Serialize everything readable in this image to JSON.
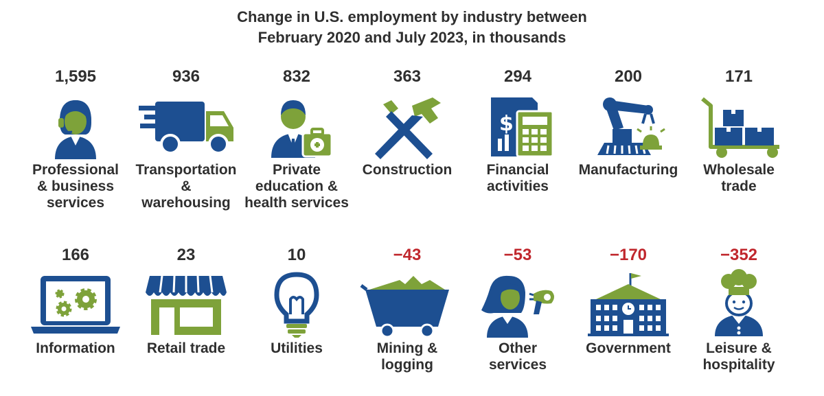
{
  "title_lines": [
    "Change in U.S. employment by industry between",
    "February 2020 and July 2023, in thousands"
  ],
  "colors": {
    "navy": "#1d4f91",
    "green": "#7ea23a",
    "negative": "#c0272d",
    "text": "#2f2f2f"
  },
  "chart_data": {
    "type": "table",
    "title": "Change in U.S. employment by industry between February 2020 and July 2023, in thousands",
    "unit": "thousands",
    "categories": [
      "Professional & business services",
      "Transportation & warehousing",
      "Private education & health services",
      "Construction",
      "Financial activities",
      "Manufacturing",
      "Wholesale trade",
      "Information",
      "Retail trade",
      "Utilities",
      "Mining & logging",
      "Other services",
      "Government",
      "Leisure & hospitality"
    ],
    "values": [
      1595,
      936,
      832,
      363,
      294,
      200,
      171,
      166,
      23,
      10,
      -43,
      -53,
      -170,
      -352
    ],
    "items": [
      {
        "value_text": "1,595",
        "label_lines": [
          "Professional",
          "& business",
          "services"
        ],
        "icon": "call-center-agent-icon",
        "sign": "pos"
      },
      {
        "value_text": "936",
        "label_lines": [
          "Transportation",
          "&",
          "warehousing"
        ],
        "icon": "delivery-truck-icon",
        "sign": "pos"
      },
      {
        "value_text": "832",
        "label_lines": [
          "Private",
          "education &",
          "health services"
        ],
        "icon": "doctor-medical-kit-icon",
        "sign": "pos"
      },
      {
        "value_text": "363",
        "label_lines": [
          "Construction"
        ],
        "icon": "hammer-screwdriver-icon",
        "sign": "pos"
      },
      {
        "value_text": "294",
        "label_lines": [
          "Financial",
          "activities"
        ],
        "icon": "calculator-document-icon",
        "sign": "pos"
      },
      {
        "value_text": "200",
        "label_lines": [
          "Manufacturing"
        ],
        "icon": "robot-arm-icon",
        "sign": "pos"
      },
      {
        "value_text": "171",
        "label_lines": [
          "Wholesale",
          "trade"
        ],
        "icon": "hand-truck-boxes-icon",
        "sign": "pos"
      },
      {
        "value_text": "166",
        "label_lines": [
          "Information"
        ],
        "icon": "laptop-gears-icon",
        "sign": "pos"
      },
      {
        "value_text": "23",
        "label_lines": [
          "Retail trade"
        ],
        "icon": "storefront-icon",
        "sign": "pos"
      },
      {
        "value_text": "10",
        "label_lines": [
          "Utilities"
        ],
        "icon": "light-bulb-icon",
        "sign": "pos"
      },
      {
        "value_text": "−43",
        "label_lines": [
          "Mining &",
          "logging"
        ],
        "icon": "mine-cart-icon",
        "sign": "neg"
      },
      {
        "value_text": "−53",
        "label_lines": [
          "Other",
          "services"
        ],
        "icon": "hairdryer-woman-icon",
        "sign": "neg"
      },
      {
        "value_text": "−170",
        "label_lines": [
          "Government"
        ],
        "icon": "government-building-icon",
        "sign": "neg"
      },
      {
        "value_text": "−352",
        "label_lines": [
          "Leisure &",
          "hospitality"
        ],
        "icon": "chef-icon",
        "sign": "neg"
      }
    ]
  }
}
